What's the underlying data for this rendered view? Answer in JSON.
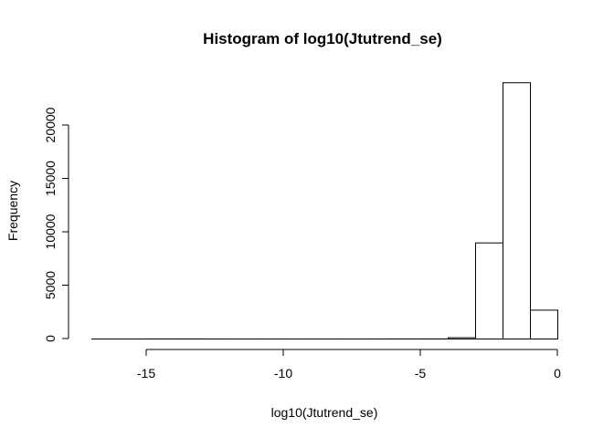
{
  "chart_data": {
    "type": "bar",
    "title": "Histogram of log10(Jtutrend_se)",
    "xlabel": "log10(Jtutrend_se)",
    "ylabel": "Frequency",
    "xlim": [
      -17,
      0
    ],
    "ylim": [
      0,
      24000
    ],
    "x_ticks": [
      -15,
      -10,
      -5,
      0
    ],
    "x_tick_labels": [
      "-15",
      "-10",
      "-5",
      "0"
    ],
    "y_ticks": [
      0,
      5000,
      10000,
      15000,
      20000
    ],
    "y_tick_labels": [
      "0",
      "5000",
      "10000",
      "15000",
      "20000"
    ],
    "grid": false,
    "legend": "none",
    "bar_fill": "#ffffff",
    "bar_stroke": "#000000",
    "bins": [
      {
        "x0": -17,
        "x1": -16,
        "count": 1
      },
      {
        "x0": -16,
        "x1": -15,
        "count": 2
      },
      {
        "x0": -15,
        "x1": -14,
        "count": 5
      },
      {
        "x0": -14,
        "x1": -13,
        "count": 8
      },
      {
        "x0": -13,
        "x1": -12,
        "count": 4
      },
      {
        "x0": -12,
        "x1": -11,
        "count": 3
      },
      {
        "x0": -11,
        "x1": -10,
        "count": 3
      },
      {
        "x0": -10,
        "x1": -9,
        "count": 3
      },
      {
        "x0": -9,
        "x1": -8,
        "count": 3
      },
      {
        "x0": -8,
        "x1": -7,
        "count": 3
      },
      {
        "x0": -7,
        "x1": -6,
        "count": 4
      },
      {
        "x0": -6,
        "x1": -5,
        "count": 5
      },
      {
        "x0": -5,
        "x1": -4,
        "count": 10
      },
      {
        "x0": -4,
        "x1": -3,
        "count": 120
      },
      {
        "x0": -3,
        "x1": -2,
        "count": 9000
      },
      {
        "x0": -2,
        "x1": -1,
        "count": 24000
      },
      {
        "x0": -1,
        "x1": 0,
        "count": 2700
      }
    ]
  }
}
